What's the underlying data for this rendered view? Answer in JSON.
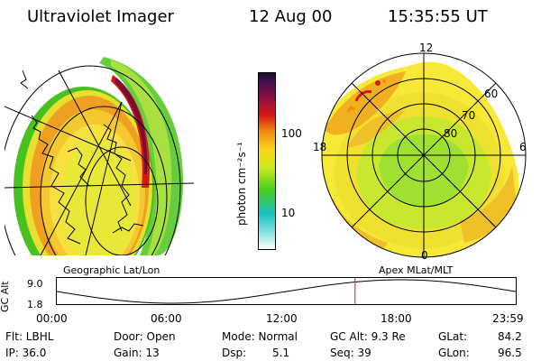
{
  "header": {
    "title": "Ultraviolet Imager",
    "date": "12 Aug 00",
    "time": "15:35:55 UT"
  },
  "left_panel": {
    "caption": "Geographic Lat/Lon"
  },
  "right_panel": {
    "caption": "Apex MLat/MLT",
    "mlt_labels": {
      "top": "12",
      "left": "18",
      "right": "6",
      "bottom": "0"
    },
    "lat_labels": [
      "60",
      "70",
      "80"
    ]
  },
  "colorbar": {
    "unit_label": "photon cm⁻²s⁻¹",
    "scale": "log",
    "ticks": [
      "100",
      "10"
    ],
    "colors": [
      "#1a0f2e",
      "#8a1040",
      "#d81818",
      "#f08a10",
      "#f8d818",
      "#c8e820",
      "#48d018",
      "#18c0c0",
      "#80e0e0",
      "#ffffff"
    ]
  },
  "altitude_plot": {
    "ylabel": "GC Alt",
    "ytick_top": "9.0",
    "ytick_bottom": "1.8",
    "xticks": [
      "00:00",
      "06:00",
      "12:00",
      "18:00",
      "23:59"
    ],
    "current_time_hours": 15.6,
    "marker_color": "#cc2020"
  },
  "status": {
    "flt": "Flt: LBHL",
    "ip": "IP: 36.0",
    "door": "Door: Open",
    "gain": "Gain: 13",
    "mode": "Mode: Normal",
    "dsp": "Dsp:",
    "dsp_value": "5.1",
    "gc_alt": "GC Alt: 9.3 Re",
    "seq": "Seq: 39",
    "glat": "GLat:",
    "glat_value": "84.2",
    "glon": "GLon:",
    "glon_value": "96.5"
  }
}
